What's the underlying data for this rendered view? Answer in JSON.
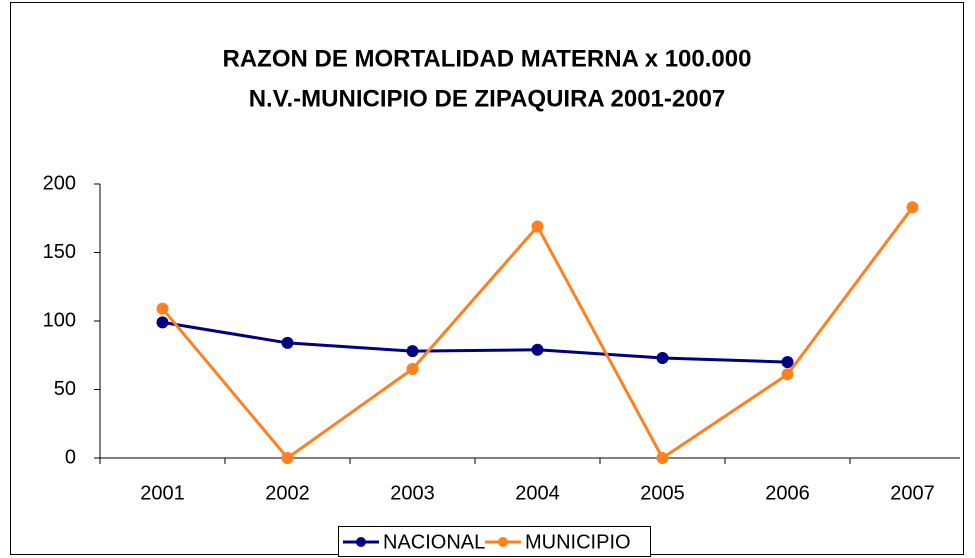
{
  "chart_data": {
    "type": "line",
    "title": [
      "RAZON DE MORTALIDAD MATERNA x 100.000",
      "N.V.-MUNICIPIO DE ZIPAQUIRA 2001-2007"
    ],
    "categories": [
      "2001",
      "2002",
      "2003",
      "2004",
      "2005",
      "2006",
      "2007"
    ],
    "series": [
      {
        "name": "NACIONAL",
        "color": "#000080",
        "values": [
          99,
          84,
          78,
          79,
          73,
          70,
          null
        ]
      },
      {
        "name": "MUNICIPIO",
        "color": "#ff8020",
        "values": [
          109,
          0,
          65,
          169,
          0,
          61,
          183
        ]
      }
    ],
    "ylim": [
      0,
      200
    ],
    "yticks": [
      0,
      50,
      100,
      150,
      200
    ],
    "grid": false,
    "legend": "bottom"
  }
}
